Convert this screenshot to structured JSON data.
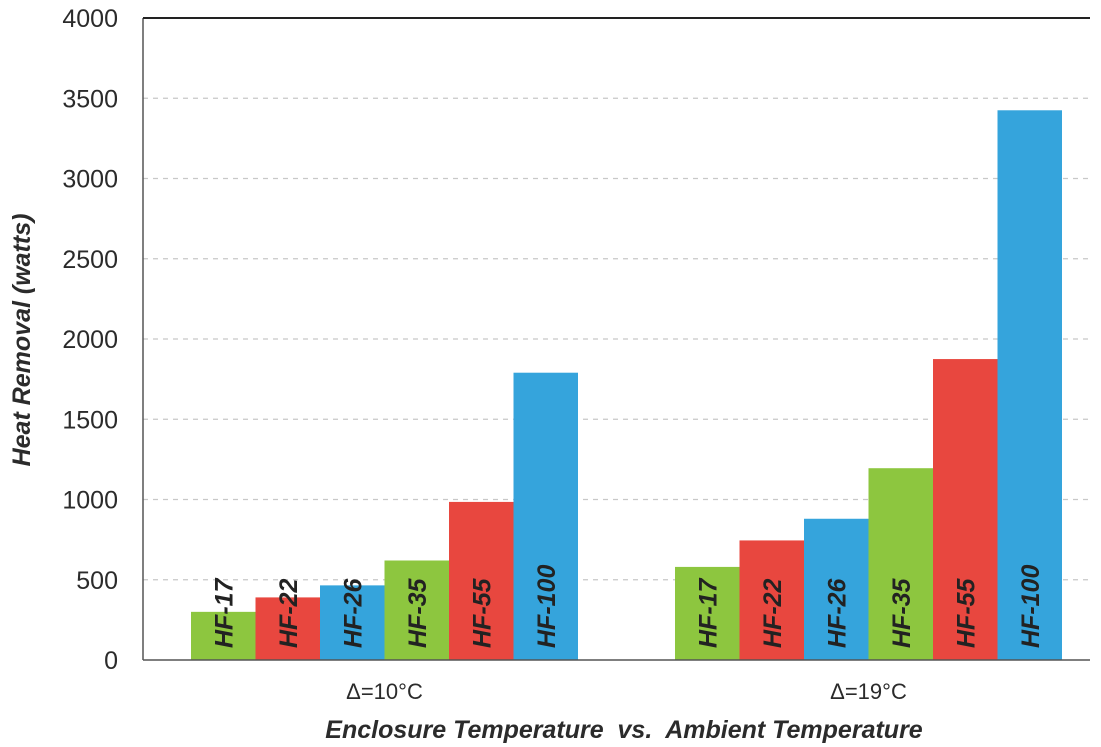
{
  "chart_data": {
    "type": "bar",
    "categories": [
      "Δ=10°C",
      "Δ=19°C"
    ],
    "series": [
      {
        "name": "HF-17",
        "color": "#8dc63f",
        "values": [
          300,
          580
        ]
      },
      {
        "name": "HF-22",
        "color": "#e8473f",
        "values": [
          390,
          745
        ]
      },
      {
        "name": "HF-26",
        "color": "#35a4dc",
        "values": [
          465,
          880
        ]
      },
      {
        "name": "HF-35",
        "color": "#8dc63f",
        "values": [
          620,
          1195
        ]
      },
      {
        "name": "HF-55",
        "color": "#e8473f",
        "values": [
          985,
          1875
        ]
      },
      {
        "name": "HF-100",
        "color": "#35a4dc",
        "values": [
          1790,
          3425
        ]
      }
    ],
    "xlabel": "Enclosure Temperature  vs.  Ambient Temperature",
    "ylabel": "Heat Removal (watts)",
    "ylim": [
      0,
      4000
    ],
    "yticks": [
      "0",
      "500",
      "1000",
      "1500",
      "2000",
      "2500",
      "3000",
      "3500",
      "4000"
    ],
    "grid": true,
    "legend": "none"
  }
}
